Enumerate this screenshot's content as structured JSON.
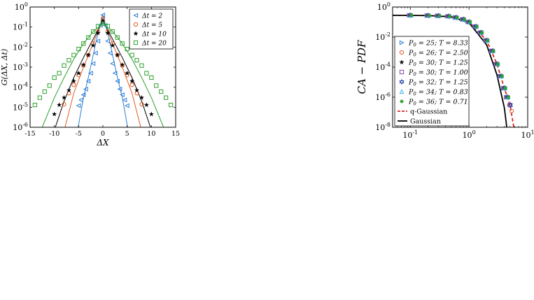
{
  "chart_data": [
    {
      "type": "scatter",
      "xlabel": "ΔX",
      "ylabel": "G(ΔX, Δt)",
      "xscale": "linear",
      "yscale": "log",
      "xlim": [
        -15,
        15
      ],
      "ylim": [
        1e-06,
        1
      ],
      "xticks": [
        -15,
        -10,
        -5,
        0,
        5,
        10,
        15
      ],
      "xtick_labels": [
        "-15",
        "-10",
        "-5",
        "0",
        "5",
        "10",
        "15"
      ],
      "yticks": [
        1e-06,
        1e-05,
        0.0001,
        0.001,
        0.01,
        0.1,
        1
      ],
      "ytick_labels": [
        {
          "base": "10",
          "exp": "-6"
        },
        {
          "base": "10",
          "exp": "-5"
        },
        {
          "base": "10",
          "exp": "-4"
        },
        {
          "base": "10",
          "exp": "-3"
        },
        {
          "base": "10",
          "exp": "-2"
        },
        {
          "base": "10",
          "exp": "-1"
        },
        {
          "base": "10",
          "exp": "0"
        }
      ],
      "legend_position": "top-right",
      "grid": false,
      "series": [
        {
          "name": "Δt = 2",
          "marker": "triangle-left",
          "color": "#2f7fd2",
          "peak": 0.4,
          "width": 0.9,
          "points": [
            [
              -5,
              1.2e-05
            ],
            [
              -4.5,
              2.3e-05
            ],
            [
              -4,
              4.2e-05
            ],
            [
              -3.5,
              8e-05
            ],
            [
              -3,
              0.0002
            ],
            [
              -2.5,
              0.0005
            ],
            [
              -2,
              0.0015
            ],
            [
              -1.5,
              0.005
            ],
            [
              -1,
              0.02
            ],
            [
              -0.5,
              0.12
            ],
            [
              0,
              0.4
            ],
            [
              0.5,
              0.12
            ],
            [
              1,
              0.02
            ],
            [
              1.5,
              0.005
            ],
            [
              2,
              0.0015
            ],
            [
              2.5,
              0.0005
            ],
            [
              3,
              0.0002
            ],
            [
              3.5,
              8e-05
            ],
            [
              4,
              4.2e-05
            ],
            [
              4.5,
              2.3e-05
            ],
            [
              5,
              1.2e-05
            ]
          ],
          "curve_points": [
            [
              -5.1,
              1e-06
            ],
            [
              -4,
              3e-05
            ],
            [
              -3,
              0.0003
            ],
            [
              -2,
              0.004
            ],
            [
              -1,
              0.05
            ],
            [
              0,
              0.4
            ],
            [
              1,
              0.05
            ],
            [
              2,
              0.004
            ],
            [
              3,
              0.0003
            ],
            [
              4,
              3e-05
            ],
            [
              5.1,
              1e-06
            ]
          ]
        },
        {
          "name": "Δt = 5",
          "marker": "circle",
          "color": "#e05a24",
          "peak": 0.27,
          "width": 1.4,
          "points": [
            [
              -8,
              1.4e-05
            ],
            [
              -7,
              5e-05
            ],
            [
              -6,
              0.00013
            ],
            [
              -5,
              0.0004
            ],
            [
              -4,
              0.0012
            ],
            [
              -3,
              0.004
            ],
            [
              -2,
              0.015
            ],
            [
              -1,
              0.06
            ],
            [
              0,
              0.27
            ],
            [
              1,
              0.06
            ],
            [
              2,
              0.015
            ],
            [
              3,
              0.004
            ],
            [
              4,
              0.0012
            ],
            [
              5,
              0.0004
            ],
            [
              6,
              0.00013
            ],
            [
              7,
              5e-05
            ],
            [
              8,
              1.4e-05
            ]
          ],
          "curve_points": [
            [
              -7.8,
              1e-06
            ],
            [
              -6,
              5e-05
            ],
            [
              -4,
              0.001
            ],
            [
              -2,
              0.015
            ],
            [
              0,
              0.27
            ],
            [
              2,
              0.015
            ],
            [
              4,
              0.001
            ],
            [
              6,
              5e-05
            ],
            [
              7.8,
              1e-06
            ]
          ]
        },
        {
          "name": "Δt = 10",
          "marker": "star",
          "color": "#000000",
          "peak": 0.2,
          "width": 2.0,
          "points": [
            [
              -10,
              4.5e-06
            ],
            [
              -9,
              1.3e-05
            ],
            [
              -8,
              3e-05
            ],
            [
              -7,
              7e-05
            ],
            [
              -6,
              0.0002
            ],
            [
              -5,
              0.0005
            ],
            [
              -4,
              0.0013
            ],
            [
              -3,
              0.004
            ],
            [
              -2,
              0.012
            ],
            [
              -1,
              0.05
            ],
            [
              0,
              0.2
            ],
            [
              1,
              0.05
            ],
            [
              2,
              0.012
            ],
            [
              3,
              0.004
            ],
            [
              4,
              0.0013
            ],
            [
              5,
              0.0005
            ],
            [
              6,
              0.0002
            ],
            [
              7,
              7e-05
            ],
            [
              8,
              3e-05
            ],
            [
              9,
              1.3e-05
            ],
            [
              10,
              4.5e-06
            ]
          ],
          "curve_points": [
            [
              -9.8,
              1e-06
            ],
            [
              -8,
              2e-05
            ],
            [
              -6,
              0.0003
            ],
            [
              -4,
              0.003
            ],
            [
              -2,
              0.025
            ],
            [
              0,
              0.2
            ],
            [
              2,
              0.025
            ],
            [
              4,
              0.003
            ],
            [
              6,
              0.0003
            ],
            [
              8,
              2e-05
            ],
            [
              9.8,
              1e-06
            ]
          ]
        },
        {
          "name": "Δt = 20",
          "marker": "square",
          "color": "#2ca02c",
          "peak": 0.15,
          "width": 3.0,
          "points": [
            [
              -14,
              1.3e-05
            ],
            [
              -13,
              3e-05
            ],
            [
              -12,
              6e-05
            ],
            [
              -11,
              0.00012
            ],
            [
              -10,
              0.0003
            ],
            [
              -9,
              0.0005
            ],
            [
              -8,
              0.0012
            ],
            [
              -7,
              0.0022
            ],
            [
              -6,
              0.004
            ],
            [
              -5,
              0.008
            ],
            [
              -4,
              0.015
            ],
            [
              -3,
              0.03
            ],
            [
              -2,
              0.06
            ],
            [
              -1,
              0.11
            ],
            [
              0,
              0.15
            ],
            [
              1,
              0.11
            ],
            [
              2,
              0.06
            ],
            [
              3,
              0.03
            ],
            [
              4,
              0.015
            ],
            [
              5,
              0.008
            ],
            [
              6,
              0.004
            ],
            [
              7,
              0.0022
            ],
            [
              8,
              0.0012
            ],
            [
              9,
              0.0005
            ],
            [
              10,
              0.0003
            ],
            [
              11,
              0.00012
            ],
            [
              12,
              6e-05
            ],
            [
              13,
              3e-05
            ],
            [
              14,
              1.3e-05
            ]
          ],
          "curve_points": [
            [
              -12.5,
              1e-06
            ],
            [
              -10,
              3e-05
            ],
            [
              -8,
              0.0003
            ],
            [
              -6,
              0.0025
            ],
            [
              -4,
              0.015
            ],
            [
              -2,
              0.06
            ],
            [
              0,
              0.15
            ],
            [
              2,
              0.06
            ],
            [
              4,
              0.015
            ],
            [
              6,
              0.0025
            ],
            [
              8,
              0.0003
            ],
            [
              10,
              3e-05
            ],
            [
              12.5,
              1e-06
            ]
          ]
        }
      ]
    },
    {
      "type": "scatter",
      "xlabel": "",
      "ylabel": "CA − PDF",
      "xscale": "log",
      "yscale": "log",
      "xlim": [
        0.05,
        10
      ],
      "ylim": [
        1e-08,
        1
      ],
      "xticks": [
        0.1,
        1,
        10
      ],
      "xtick_labels": [
        {
          "base": "10",
          "exp": "-1"
        },
        {
          "base": "10",
          "exp": "0"
        },
        {
          "base": "10",
          "exp": "1"
        }
      ],
      "yticks": [
        1e-08,
        1e-06,
        0.0001,
        0.01,
        1
      ],
      "ytick_labels": [
        {
          "base": "10",
          "exp": "-8"
        },
        {
          "base": "10",
          "exp": "-6"
        },
        {
          "base": "10",
          "exp": "-4"
        },
        {
          "base": "10",
          "exp": "-2"
        },
        {
          "base": "10",
          "exp": "0"
        }
      ],
      "legend_position": "bottom-left",
      "grid": false,
      "x_common": [
        0.1,
        0.2,
        0.3,
        0.45,
        0.6,
        0.8,
        1.0,
        1.3,
        1.6,
        2.0,
        2.5,
        3.0,
        3.5,
        4.0,
        4.5,
        5.0,
        5.5
      ],
      "y_common": [
        0.28,
        0.27,
        0.26,
        0.24,
        0.2,
        0.15,
        0.1,
        0.05,
        0.02,
        0.006,
        0.0012,
        0.00016,
        2.5e-05,
        4e-06,
        1e-06,
        3e-07,
        1.2e-07
      ],
      "series": [
        {
          "name": "P0 = 25;  T = 8.33",
          "label_p": "25",
          "label_t": "8.33",
          "marker": "triangle-right",
          "color": "#2f7fd2",
          "n_points": 15
        },
        {
          "name": "P0 = 26;  T = 2.50",
          "label_p": "26",
          "label_t": "2.50",
          "marker": "circle",
          "color": "#e05a24",
          "n_points": 17
        },
        {
          "name": "P0 = 30;  T = 1.25",
          "label_p": "30",
          "label_t": "1.25",
          "marker": "star",
          "color": "#000000",
          "n_points": 15
        },
        {
          "name": "P0 = 30;  T = 1.00",
          "label_p": "30",
          "label_t": "1.00",
          "marker": "square",
          "color": "#8e44ad",
          "n_points": 16
        },
        {
          "name": "P0 = 32;  T = 1.25",
          "label_p": "32",
          "label_t": "1.25",
          "marker": "hexagram",
          "color": "#1f3fa8",
          "n_points": 16
        },
        {
          "name": "P0 = 34;  T = 0.83",
          "label_p": "34",
          "label_t": "0.83",
          "marker": "triangle-up",
          "color": "#3fb6e8",
          "n_points": 15
        },
        {
          "name": "P0 = 36;  T = 0.71",
          "label_p": "36",
          "label_t": "0.71",
          "marker": "asterisk",
          "color": "#2ca02c",
          "n_points": 15
        }
      ],
      "fits": [
        {
          "name": "q-Gaussian",
          "style": "dashed",
          "color": "#d62728",
          "points": [
            [
              0.05,
              0.28
            ],
            [
              0.2,
              0.27
            ],
            [
              0.5,
              0.23
            ],
            [
              1,
              0.1
            ],
            [
              2,
              0.006
            ],
            [
              3,
              0.00016
            ],
            [
              4,
              4e-06
            ],
            [
              5,
              3e-07
            ],
            [
              5.8,
              1e-08
            ]
          ]
        },
        {
          "name": "Gaussian",
          "style": "solid",
          "color": "#000000",
          "points": [
            [
              0.05,
              0.28
            ],
            [
              0.2,
              0.27
            ],
            [
              0.5,
              0.22
            ],
            [
              1,
              0.09
            ],
            [
              2,
              0.003
            ],
            [
              3,
              3e-05
            ],
            [
              4,
              2e-07
            ],
            [
              4.4,
              1e-08
            ]
          ]
        }
      ]
    }
  ]
}
